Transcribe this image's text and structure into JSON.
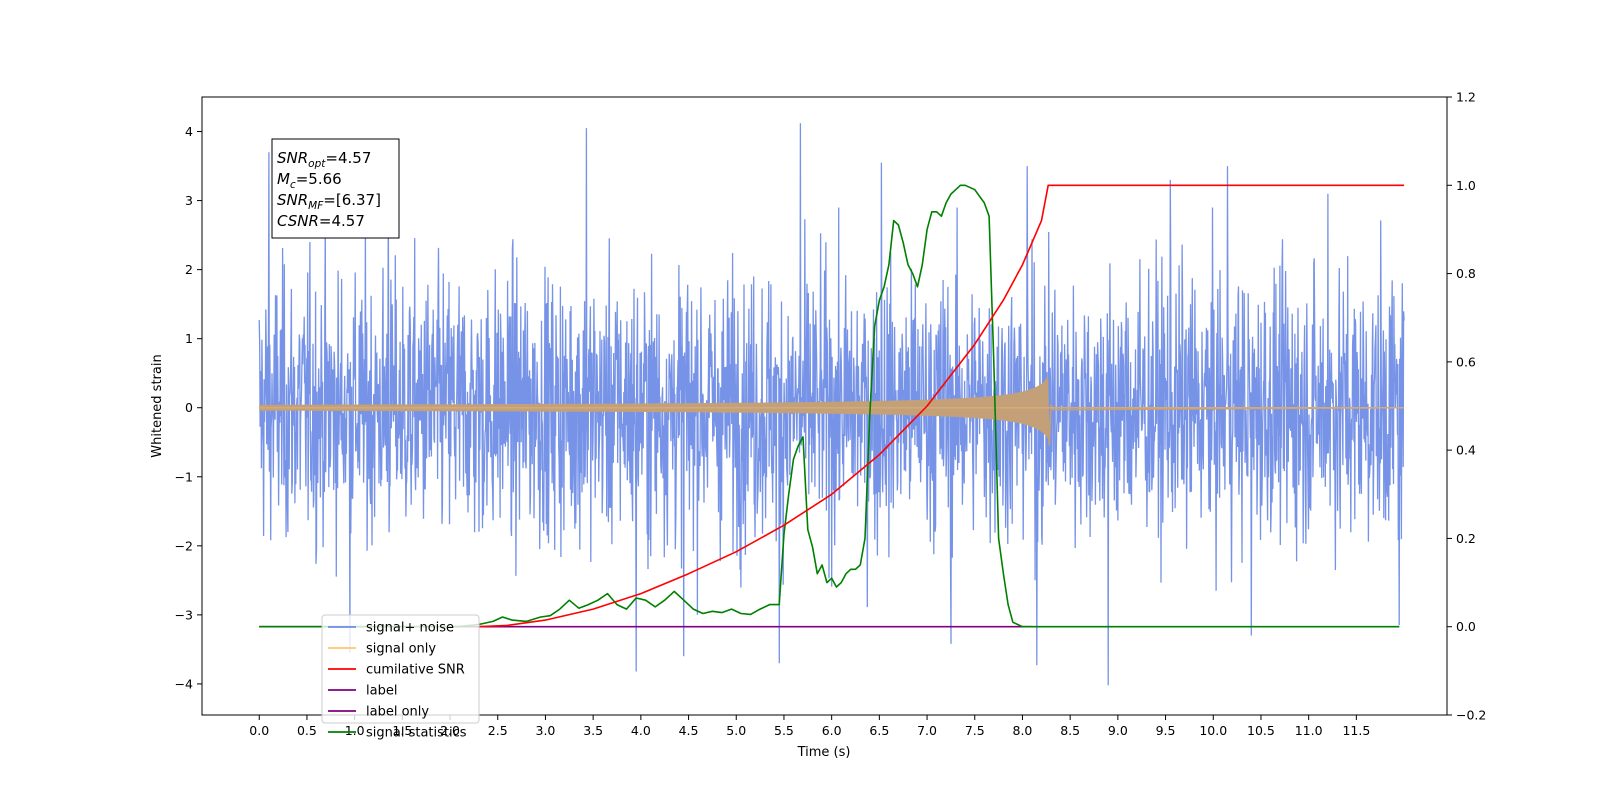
{
  "chart_data": {
    "type": "line",
    "xlabel": "Time (s)",
    "ylabel": "Whitened strain",
    "xlim": [
      -0.6,
      12.45
    ],
    "ylim_left": [
      -4.45,
      4.5
    ],
    "ylim_right": [
      -0.2,
      1.2
    ],
    "x_ticks": [
      0.0,
      0.5,
      1.0,
      1.5,
      2.0,
      2.5,
      3.0,
      3.5,
      4.0,
      4.5,
      5.0,
      5.5,
      6.0,
      6.5,
      7.0,
      7.5,
      8.0,
      8.5,
      9.0,
      9.5,
      10.0,
      10.5,
      11.0,
      11.5
    ],
    "x_tick_labels": [
      "0.0",
      "0.5",
      "1.0",
      "1.5",
      "2.0",
      "2.5",
      "3.0",
      "3.5",
      "4.0",
      "4.5",
      "5.0",
      "5.5",
      "6.0",
      "6.5",
      "7.0",
      "7.5",
      "8.0",
      "8.5",
      "9.0",
      "9.5",
      "10.0",
      "10.5",
      "11.0",
      "11.5"
    ],
    "y_left_ticks": [
      -4,
      -3,
      -2,
      -1,
      0,
      1,
      2,
      3,
      4
    ],
    "y_left_tick_labels": [
      "−4",
      "−3",
      "−2",
      "−1",
      "0",
      "1",
      "2",
      "3",
      "4"
    ],
    "y_right_ticks": [
      -0.2,
      0.0,
      0.2,
      0.4,
      0.6,
      0.8,
      1.0,
      1.2
    ],
    "y_right_tick_labels": [
      "−0.2",
      "0.0",
      "0.2",
      "0.4",
      "0.6",
      "0.8",
      "1.0",
      "1.2"
    ],
    "grid": false,
    "legend_position": "lower-left",
    "legend": [
      {
        "label": "signal+ noise",
        "color": "#6f8de6"
      },
      {
        "label": "signal only",
        "color": "#ffc46e"
      },
      {
        "label": "cumilative SNR",
        "color": "#ff0000"
      },
      {
        "label": "label",
        "color": "#800080"
      },
      {
        "label": "label only",
        "color": "#800080"
      },
      {
        "label": "signal statistics",
        "color": "#008000"
      }
    ],
    "stats_box": {
      "lines": [
        {
          "name": "SNR",
          "sub": "opt",
          "value": "=4.57"
        },
        {
          "name": "M",
          "sub": "c",
          "value": "=5.66"
        },
        {
          "name": "SNR",
          "sub": "MF",
          "value": "=[6.37]"
        },
        {
          "name": "CSNR",
          "sub": "",
          "value": "=4.57"
        }
      ]
    },
    "series": [
      {
        "name": "signal+ noise",
        "axis": "left",
        "color": "#6f8de6",
        "x_range": [
          0.0,
          12.0
        ],
        "envelope_upper": 2.1,
        "envelope_lower": -2.15,
        "peaks": [
          [
            0.1,
            3.7
          ],
          [
            1.35,
            3.2
          ],
          [
            3.43,
            4.05
          ],
          [
            5.67,
            4.12
          ],
          [
            6.52,
            3.55
          ],
          [
            8.05,
            3.5
          ],
          [
            10.15,
            3.5
          ],
          [
            9.55,
            3.3
          ],
          [
            11.2,
            3.1
          ]
        ],
        "dips": [
          [
            3.95,
            -3.82
          ],
          [
            4.45,
            -3.6
          ],
          [
            5.45,
            -3.7
          ],
          [
            7.25,
            -3.42
          ],
          [
            8.15,
            -3.73
          ],
          [
            8.9,
            -4.02
          ],
          [
            10.4,
            -3.3
          ],
          [
            11.95,
            -3.15
          ],
          [
            0.95,
            -3.55
          ]
        ]
      },
      {
        "name": "signal only",
        "axis": "left",
        "color": "#c8a070",
        "x_range": [
          0.0,
          12.0
        ],
        "chirp_end": 8.27,
        "amplitude_at_end": 0.45
      },
      {
        "name": "cumilative SNR",
        "axis": "right",
        "color": "#ff0000",
        "x": [
          2.3,
          2.6,
          3.0,
          3.5,
          4.0,
          4.5,
          5.0,
          5.5,
          6.0,
          6.5,
          7.0,
          7.5,
          7.8,
          8.0,
          8.1,
          8.2,
          8.27,
          8.5,
          9.0,
          10.0,
          11.0,
          12.0
        ],
        "values": [
          0.0,
          0.003,
          0.015,
          0.04,
          0.075,
          0.12,
          0.17,
          0.23,
          0.3,
          0.39,
          0.5,
          0.64,
          0.74,
          0.82,
          0.87,
          0.92,
          1.0,
          1.0,
          1.0,
          1.0,
          1.0,
          1.0
        ]
      },
      {
        "name": "label",
        "axis": "right",
        "color": "#800080",
        "x": [
          0.0,
          8.1
        ],
        "values": [
          0.0,
          0.0
        ]
      },
      {
        "name": "signal statistics",
        "axis": "right",
        "color": "#008000",
        "x": [
          0.0,
          2.0,
          2.1,
          2.3,
          2.45,
          2.55,
          2.65,
          2.8,
          2.95,
          3.05,
          3.15,
          3.25,
          3.35,
          3.45,
          3.55,
          3.65,
          3.75,
          3.85,
          3.95,
          4.05,
          4.15,
          4.25,
          4.35,
          4.45,
          4.55,
          4.65,
          4.75,
          4.85,
          4.95,
          5.05,
          5.15,
          5.25,
          5.35,
          5.45,
          5.5,
          5.55,
          5.6,
          5.65,
          5.7,
          5.75,
          5.8,
          5.85,
          5.9,
          5.95,
          6.0,
          6.05,
          6.1,
          6.15,
          6.2,
          6.25,
          6.3,
          6.35,
          6.4,
          6.45,
          6.5,
          6.55,
          6.6,
          6.65,
          6.7,
          6.75,
          6.8,
          6.85,
          6.9,
          6.95,
          7.0,
          7.05,
          7.1,
          7.15,
          7.2,
          7.25,
          7.3,
          7.35,
          7.4,
          7.5,
          7.6,
          7.65,
          7.7,
          7.75,
          7.8,
          7.85,
          7.9,
          7.95,
          8.0,
          8.1,
          8.2,
          9.0,
          10.0,
          11.0,
          11.95
        ],
        "values": [
          0.0,
          0.0,
          0.001,
          0.005,
          0.012,
          0.022,
          0.015,
          0.012,
          0.022,
          0.025,
          0.04,
          0.06,
          0.042,
          0.05,
          0.06,
          0.075,
          0.05,
          0.04,
          0.065,
          0.06,
          0.045,
          0.06,
          0.08,
          0.06,
          0.04,
          0.03,
          0.035,
          0.032,
          0.04,
          0.03,
          0.028,
          0.04,
          0.05,
          0.05,
          0.21,
          0.3,
          0.38,
          0.41,
          0.43,
          0.22,
          0.18,
          0.12,
          0.14,
          0.1,
          0.11,
          0.09,
          0.1,
          0.12,
          0.13,
          0.13,
          0.14,
          0.2,
          0.48,
          0.68,
          0.74,
          0.77,
          0.82,
          0.92,
          0.91,
          0.87,
          0.82,
          0.8,
          0.77,
          0.82,
          0.9,
          0.94,
          0.94,
          0.93,
          0.96,
          0.98,
          0.99,
          1.0,
          1.0,
          0.99,
          0.96,
          0.93,
          0.6,
          0.2,
          0.12,
          0.05,
          0.01,
          0.005,
          0.0,
          0.0,
          0.0,
          0.0,
          0.0,
          0.0,
          0.0
        ]
      }
    ]
  }
}
